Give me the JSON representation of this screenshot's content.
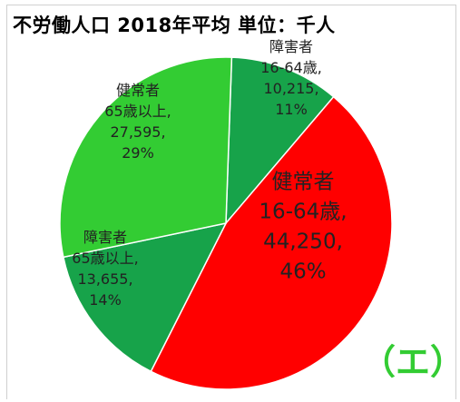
{
  "chart_data": {
    "type": "pie",
    "title": "不労働人口  2018年平均  単位：千人",
    "slices": [
      {
        "lines": [
          "障害者",
          "16-64歳,",
          "10,215,",
          "11%"
        ],
        "value": 10215,
        "percent": 11,
        "color": "#17a34a"
      },
      {
        "lines": [
          "健常者",
          "16-64歳,",
          "44,250,",
          "46%"
        ],
        "value": 44250,
        "percent": 46,
        "color": "#ff0000"
      },
      {
        "lines": [
          "障害者",
          "65歳以上,",
          "13,655,",
          "14%"
        ],
        "value": 13655,
        "percent": 14,
        "color": "#17a34a"
      },
      {
        "lines": [
          "健常者",
          "65歳以上,",
          "27,595,",
          "29%"
        ],
        "value": 27595,
        "percent": 29,
        "color": "#33cc33"
      }
    ]
  },
  "panel_label": "（エ）"
}
